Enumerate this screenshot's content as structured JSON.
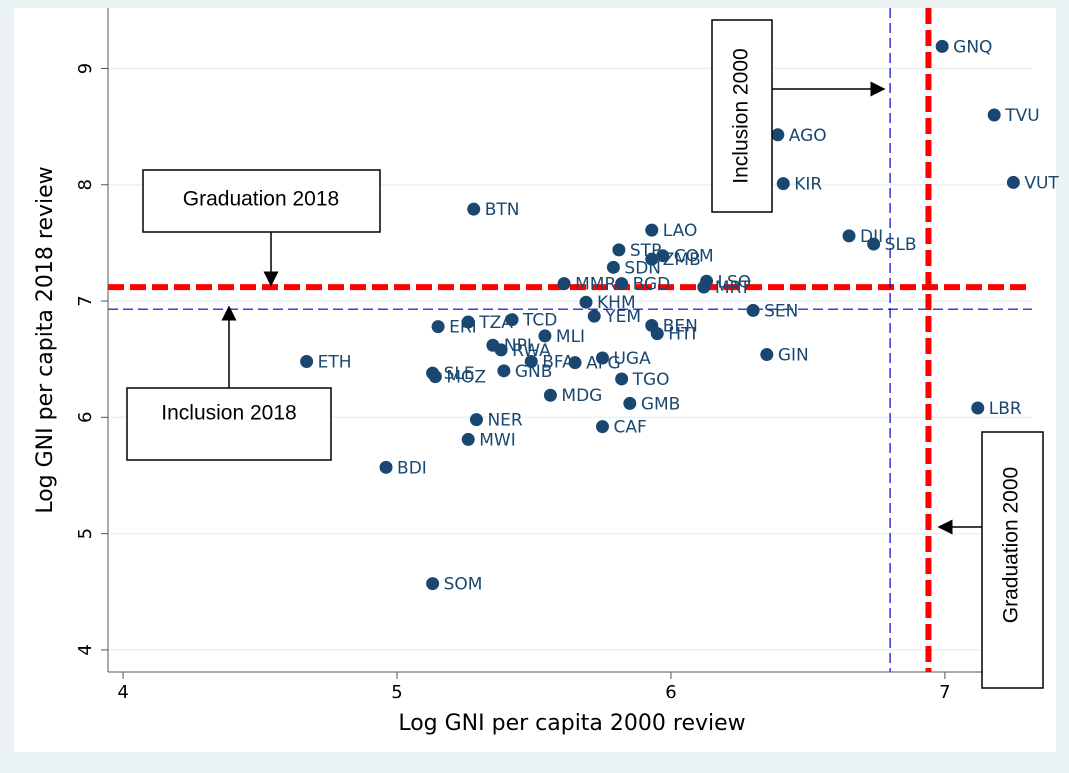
{
  "chart_data": {
    "type": "scatter",
    "x_label": "Log GNI per capita 2000 review",
    "y_label": "Log GNI per capita 2018 review",
    "xlim": [
      3.945,
      7.318
    ],
    "xticks": [
      4,
      5,
      6,
      7
    ],
    "ylim": [
      3.81,
      9.52
    ],
    "yticks": [
      4,
      5,
      6,
      7,
      8,
      9
    ],
    "grid": true,
    "x": [
      6.99,
      7.18,
      7.25,
      6.39,
      6.41,
      6.65,
      6.74,
      7.12,
      6.35,
      6.3,
      5.28,
      5.93,
      5.81,
      5.97,
      5.93,
      5.79,
      5.61,
      5.82,
      6.13,
      6.12,
      5.69,
      5.72,
      5.93,
      5.95,
      5.26,
      5.42,
      5.15,
      5.54,
      5.35,
      5.38,
      5.49,
      5.65,
      5.75,
      5.82,
      5.13,
      5.14,
      5.39,
      4.67,
      5.56,
      5.85,
      5.29,
      5.75,
      5.26,
      4.96,
      5.13
    ],
    "labels": [
      "GNQ",
      "TVU",
      "VUT",
      "AGO",
      "KIR",
      "DJI",
      "SLB",
      "LBR",
      "GIN",
      "SEN",
      "BTN",
      "LAO",
      "STP",
      "COM",
      "ZMB",
      "SDN",
      "MMR",
      "BGD",
      "LSO",
      "MRT",
      "KHM",
      "YEM",
      "BEN",
      "HTI",
      "TZA",
      "TCD",
      "ERI",
      "MLI",
      "NPL",
      "RWA",
      "BFA",
      "AFG",
      "UGA",
      "TGO",
      "SLE",
      "MOZ",
      "GNB",
      "ETH",
      "MDG",
      "GMB",
      "NER",
      "CAF",
      "MWI",
      "BDI",
      "SOM"
    ],
    "series": [
      {
        "color": "#1a476f",
        "values": [
          9.19,
          8.6,
          8.02,
          8.43,
          8.01,
          7.56,
          7.49,
          6.08,
          6.54,
          6.92,
          7.79,
          7.61,
          7.44,
          7.39,
          7.36,
          7.29,
          7.15,
          7.15,
          7.17,
          7.12,
          6.99,
          6.87,
          6.79,
          6.72,
          6.82,
          6.84,
          6.78,
          6.7,
          6.62,
          6.58,
          6.48,
          6.47,
          6.51,
          6.33,
          6.38,
          6.35,
          6.4,
          6.48,
          6.19,
          6.12,
          5.98,
          5.92,
          5.81,
          5.57,
          4.57
        ]
      }
    ],
    "hlines": [
      {
        "value": 7.12,
        "color": "#ff0000",
        "style": "bold"
      },
      {
        "value": 6.93,
        "color": "#0000cc",
        "style": "thin"
      }
    ],
    "vlines": [
      {
        "value": 6.8,
        "color": "#0000cc",
        "style": "thin"
      },
      {
        "value": 6.94,
        "color": "#ff0000",
        "style": "bold"
      }
    ],
    "annotations": [
      "Inclusion 2000",
      "Graduation 2018",
      "Inclusion 2018",
      "Graduation 2000"
    ]
  }
}
